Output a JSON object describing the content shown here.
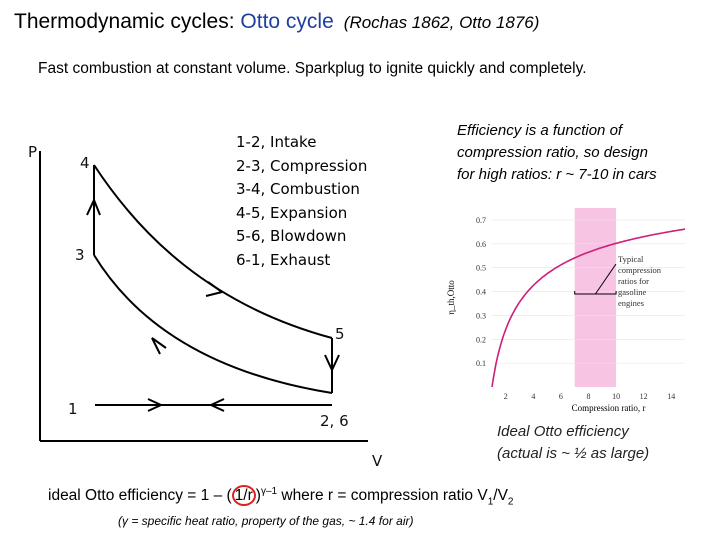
{
  "title": {
    "prefix": "Thermodynamic cycles: ",
    "highlight": "Otto cycle",
    "citation": "(Rochas 1862, Otto 1876)"
  },
  "subtitle": "Fast combustion at constant volume. Sparkplug to ignite quickly and completely.",
  "pv_diagram": {
    "axis_p": "P",
    "axis_v": "V",
    "point_1": "1",
    "point_26": "2, 6",
    "point_3": "3",
    "point_4": "4",
    "point_5": "5",
    "steps": [
      "1-2, Intake",
      "2-3, Compression",
      "3-4, Combustion",
      "4-5, Expansion",
      "5-6, Blowdown",
      "6-1, Exhaust"
    ]
  },
  "efficiency_note": [
    "Efficiency is a function of",
    "compression ratio, so design",
    "for high ratios: r ~ 7-10 in cars"
  ],
  "chart_data": {
    "type": "line",
    "xlabel": "Compression ratio, r",
    "ylabel": "η_th,Otto",
    "xlim": [
      1,
      15
    ],
    "ylim": [
      0,
      0.75
    ],
    "x_ticks": [
      "2",
      "4",
      "6",
      "8",
      "10",
      "12",
      "14"
    ],
    "y_ticks": [
      "0.1",
      "0.2",
      "0.3",
      "0.4",
      "0.5",
      "0.6",
      "0.7"
    ],
    "series": [
      {
        "name": "ideal Otto efficiency (gamma = 1.4)",
        "x": [
          1,
          2,
          3,
          4,
          5,
          6,
          7,
          8,
          9,
          10,
          11,
          12,
          13,
          14,
          15
        ],
        "y": [
          0.0,
          0.242,
          0.356,
          0.426,
          0.475,
          0.512,
          0.541,
          0.565,
          0.585,
          0.602,
          0.617,
          0.63,
          0.641,
          0.651,
          0.661
        ]
      }
    ],
    "highlight_band": [
      7,
      10
    ],
    "annotation": [
      "Typical",
      "compression",
      "ratios for",
      "gasoline",
      "engines"
    ],
    "highlight_color": "#f7c4e4",
    "curve_color": "#cc1f7a"
  },
  "ideal_caption": [
    "Ideal Otto efficiency",
    "(actual is ~ ½ as large)"
  ],
  "formula": {
    "lead": "ideal Otto efficiency = 1 – (",
    "ratio": "1/r",
    "close": ")",
    "exponent": "γ–1",
    "mid": "  where r = compression ratio V",
    "sub1": "1",
    "slash": "/V",
    "sub2": "2"
  },
  "gamma_note": "(γ = specific heat ratio, property of the gas, ~ 1.4 for air)"
}
